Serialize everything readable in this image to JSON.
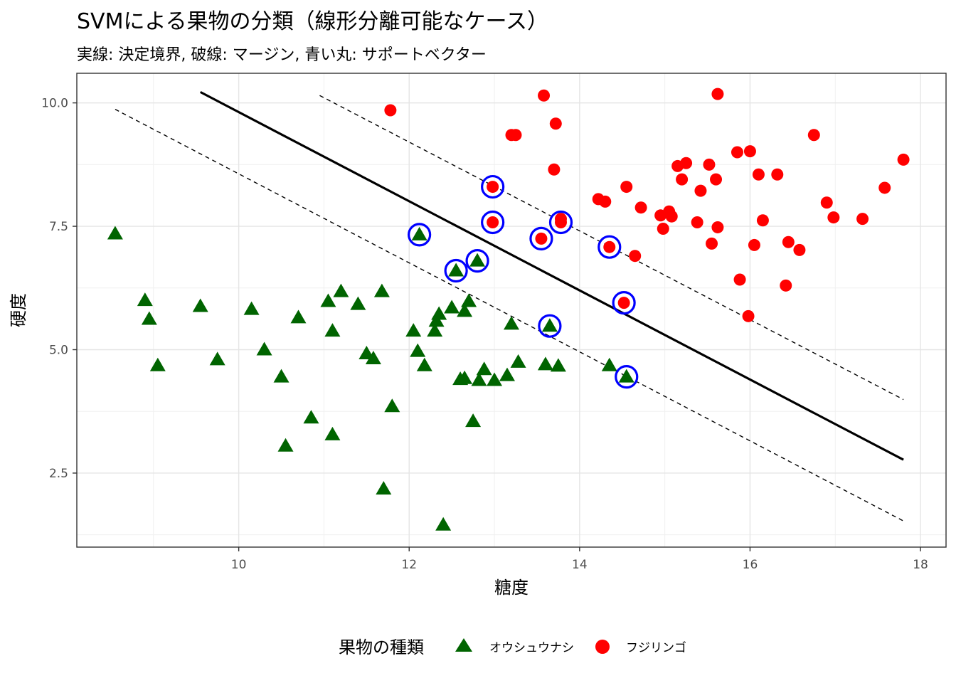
{
  "chart_data": {
    "type": "scatter",
    "title": "SVMによる果物の分類（線形分離可能なケース）",
    "subtitle": "実線: 決定境界, 破線: マージン, 青い丸: サポートベクター",
    "xlabel": "糖度",
    "ylabel": "硬度",
    "xlim": [
      8.1,
      18.3
    ],
    "ylim": [
      1.0,
      10.6
    ],
    "x_ticks": [
      10,
      12,
      14,
      16,
      18
    ],
    "x_tick_labels": [
      "10",
      "12",
      "14",
      "16",
      "18"
    ],
    "y_ticks": [
      2.5,
      5.0,
      7.5,
      10.0
    ],
    "y_tick_labels": [
      "2.5",
      "5.0",
      "7.5",
      "10.0"
    ],
    "grid": true,
    "legend": {
      "title": "果物の種類",
      "position": "bottom",
      "entries": [
        {
          "label": "オウシュウナシ",
          "shape": "triangle",
          "color": "#006400"
        },
        {
          "label": "フジリンゴ",
          "shape": "circle",
          "color": "#ff0000"
        }
      ]
    },
    "colors": {
      "class_a": "#006400",
      "class_b": "#ff0000",
      "support_vector": "#0000ff",
      "line": "#000000"
    },
    "decision_boundary": {
      "x": [
        9.55,
        17.8
      ],
      "y": [
        10.22,
        2.77
      ]
    },
    "margin_upper": {
      "x": [
        10.95,
        17.8
      ],
      "y": [
        10.15,
        3.99
      ]
    },
    "margin_lower": {
      "x": [
        8.55,
        17.8
      ],
      "y": [
        9.87,
        1.53
      ]
    },
    "series": [
      {
        "name": "オウシュウナシ",
        "marker": "triangle",
        "points": [
          [
            8.55,
            7.35
          ],
          [
            8.9,
            6.0
          ],
          [
            8.95,
            5.62
          ],
          [
            9.05,
            4.68
          ],
          [
            9.55,
            5.88
          ],
          [
            9.75,
            4.8
          ],
          [
            10.15,
            5.82
          ],
          [
            10.3,
            5.0
          ],
          [
            10.5,
            4.45
          ],
          [
            10.55,
            3.05
          ],
          [
            10.7,
            5.65
          ],
          [
            10.85,
            3.62
          ],
          [
            11.05,
            5.98
          ],
          [
            11.1,
            5.38
          ],
          [
            11.1,
            3.28
          ],
          [
            11.2,
            6.18
          ],
          [
            11.4,
            5.92
          ],
          [
            11.5,
            4.92
          ],
          [
            11.58,
            4.82
          ],
          [
            11.68,
            6.18
          ],
          [
            11.7,
            2.18
          ],
          [
            11.8,
            3.85
          ],
          [
            12.05,
            5.38
          ],
          [
            12.1,
            4.97
          ],
          [
            12.12,
            7.33
          ],
          [
            12.18,
            4.68
          ],
          [
            12.3,
            5.38
          ],
          [
            12.32,
            5.58
          ],
          [
            12.35,
            5.72
          ],
          [
            12.4,
            1.45
          ],
          [
            12.5,
            5.85
          ],
          [
            12.55,
            6.6
          ],
          [
            12.6,
            4.4
          ],
          [
            12.65,
            4.42
          ],
          [
            12.65,
            5.78
          ],
          [
            12.7,
            5.98
          ],
          [
            12.75,
            3.55
          ],
          [
            12.8,
            6.8
          ],
          [
            12.82,
            4.38
          ],
          [
            12.88,
            4.6
          ],
          [
            13.0,
            4.38
          ],
          [
            13.15,
            4.48
          ],
          [
            13.2,
            5.52
          ],
          [
            13.28,
            4.75
          ],
          [
            13.6,
            4.7
          ],
          [
            13.65,
            5.48
          ],
          [
            13.75,
            4.67
          ],
          [
            14.35,
            4.68
          ],
          [
            14.55,
            4.45
          ]
        ]
      },
      {
        "name": "フジリンゴ",
        "marker": "circle",
        "points": [
          [
            11.78,
            9.85
          ],
          [
            12.98,
            8.3
          ],
          [
            12.98,
            7.58
          ],
          [
            13.2,
            9.35
          ],
          [
            13.25,
            9.35
          ],
          [
            13.55,
            7.25
          ],
          [
            13.58,
            10.15
          ],
          [
            13.7,
            8.65
          ],
          [
            13.72,
            9.58
          ],
          [
            13.78,
            7.58
          ],
          [
            13.78,
            7.65
          ],
          [
            14.22,
            8.05
          ],
          [
            14.3,
            8.0
          ],
          [
            14.35,
            7.08
          ],
          [
            14.52,
            5.95
          ],
          [
            14.55,
            8.3
          ],
          [
            14.65,
            6.9
          ],
          [
            14.72,
            7.88
          ],
          [
            14.95,
            7.72
          ],
          [
            14.98,
            7.45
          ],
          [
            15.05,
            7.8
          ],
          [
            15.08,
            7.7
          ],
          [
            15.15,
            8.72
          ],
          [
            15.2,
            8.45
          ],
          [
            15.25,
            8.78
          ],
          [
            15.38,
            7.58
          ],
          [
            15.42,
            8.22
          ],
          [
            15.52,
            8.75
          ],
          [
            15.55,
            7.15
          ],
          [
            15.6,
            8.45
          ],
          [
            15.62,
            7.48
          ],
          [
            15.62,
            10.18
          ],
          [
            15.85,
            9.0
          ],
          [
            15.88,
            6.42
          ],
          [
            15.98,
            5.68
          ],
          [
            16.0,
            9.02
          ],
          [
            16.05,
            7.12
          ],
          [
            16.1,
            8.55
          ],
          [
            16.15,
            7.62
          ],
          [
            16.32,
            8.55
          ],
          [
            16.42,
            6.3
          ],
          [
            16.45,
            7.18
          ],
          [
            16.58,
            7.02
          ],
          [
            16.75,
            9.35
          ],
          [
            16.9,
            7.98
          ],
          [
            16.98,
            7.68
          ],
          [
            17.32,
            7.65
          ],
          [
            17.58,
            8.28
          ],
          [
            17.8,
            8.85
          ]
        ]
      },
      {
        "name": "サポートベクター",
        "marker": "ring",
        "points": [
          [
            12.12,
            7.33
          ],
          [
            12.55,
            6.6
          ],
          [
            12.8,
            6.8
          ],
          [
            12.98,
            8.3
          ],
          [
            12.98,
            7.58
          ],
          [
            13.55,
            7.25
          ],
          [
            13.65,
            5.48
          ],
          [
            13.78,
            7.58
          ],
          [
            14.35,
            7.08
          ],
          [
            14.52,
            5.95
          ],
          [
            14.55,
            4.45
          ]
        ]
      }
    ]
  }
}
